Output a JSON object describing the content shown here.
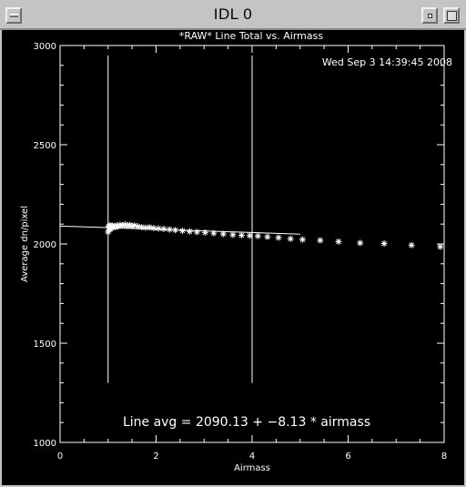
{
  "window": {
    "title": "IDL 0"
  },
  "plot": {
    "title": "*RAW* Line Total vs. Airmass",
    "timestamp": "Wed Sep  3 14:39:45 2008",
    "fit_label": "Line avg = 2090.13 + −8.13 * airmass"
  },
  "chart_data": {
    "type": "scatter",
    "title": "*RAW* Line Total vs. Airmass",
    "xlabel": "Airmass",
    "ylabel": "Average dn/pixel",
    "xlim": [
      0,
      8
    ],
    "ylim": [
      1000,
      3000
    ],
    "xticks": [
      "0",
      "2",
      "4",
      "6",
      "8"
    ],
    "yticks": [
      "1000",
      "1500",
      "2000",
      "2500",
      "3000"
    ],
    "grid": false,
    "marker": "asterisk",
    "series": [
      {
        "x": [
          1.0,
          1.01,
          1.02,
          1.03,
          1.04,
          1.05,
          1.06,
          1.07,
          1.09,
          1.11,
          1.13,
          1.15,
          1.18,
          1.21,
          1.25,
          1.3,
          1.35,
          1.4,
          1.45,
          1.5,
          1.55,
          1.62,
          1.7,
          1.78,
          1.86,
          1.95,
          2.05,
          2.16,
          2.28,
          2.4,
          2.55,
          2.7,
          2.85,
          3.02,
          3.2,
          3.4,
          3.6,
          3.78,
          3.95,
          4.12,
          4.32,
          4.55,
          4.8,
          5.05,
          5.42,
          5.8,
          6.25,
          6.75,
          7.32,
          7.92
        ],
        "y": [
          2060,
          2090,
          2070,
          2085,
          2095,
          2075,
          2088,
          2080,
          2092,
          2086,
          2090,
          2084,
          2094,
          2088,
          2096,
          2093,
          2098,
          2091,
          2096,
          2090,
          2093,
          2088,
          2085,
          2082,
          2084,
          2080,
          2078,
          2076,
          2073,
          2070,
          2066,
          2063,
          2060,
          2058,
          2054,
          2050,
          2046,
          2044,
          2042,
          2040,
          2036,
          2032,
          2026,
          2022,
          2018,
          2012,
          2005,
          2002,
          1994,
          1986
        ]
      }
    ],
    "fit_line": {
      "x": [
        0,
        5
      ],
      "y": [
        2090.13,
        2049.48
      ]
    },
    "vertical_lines": [
      1,
      4
    ]
  }
}
